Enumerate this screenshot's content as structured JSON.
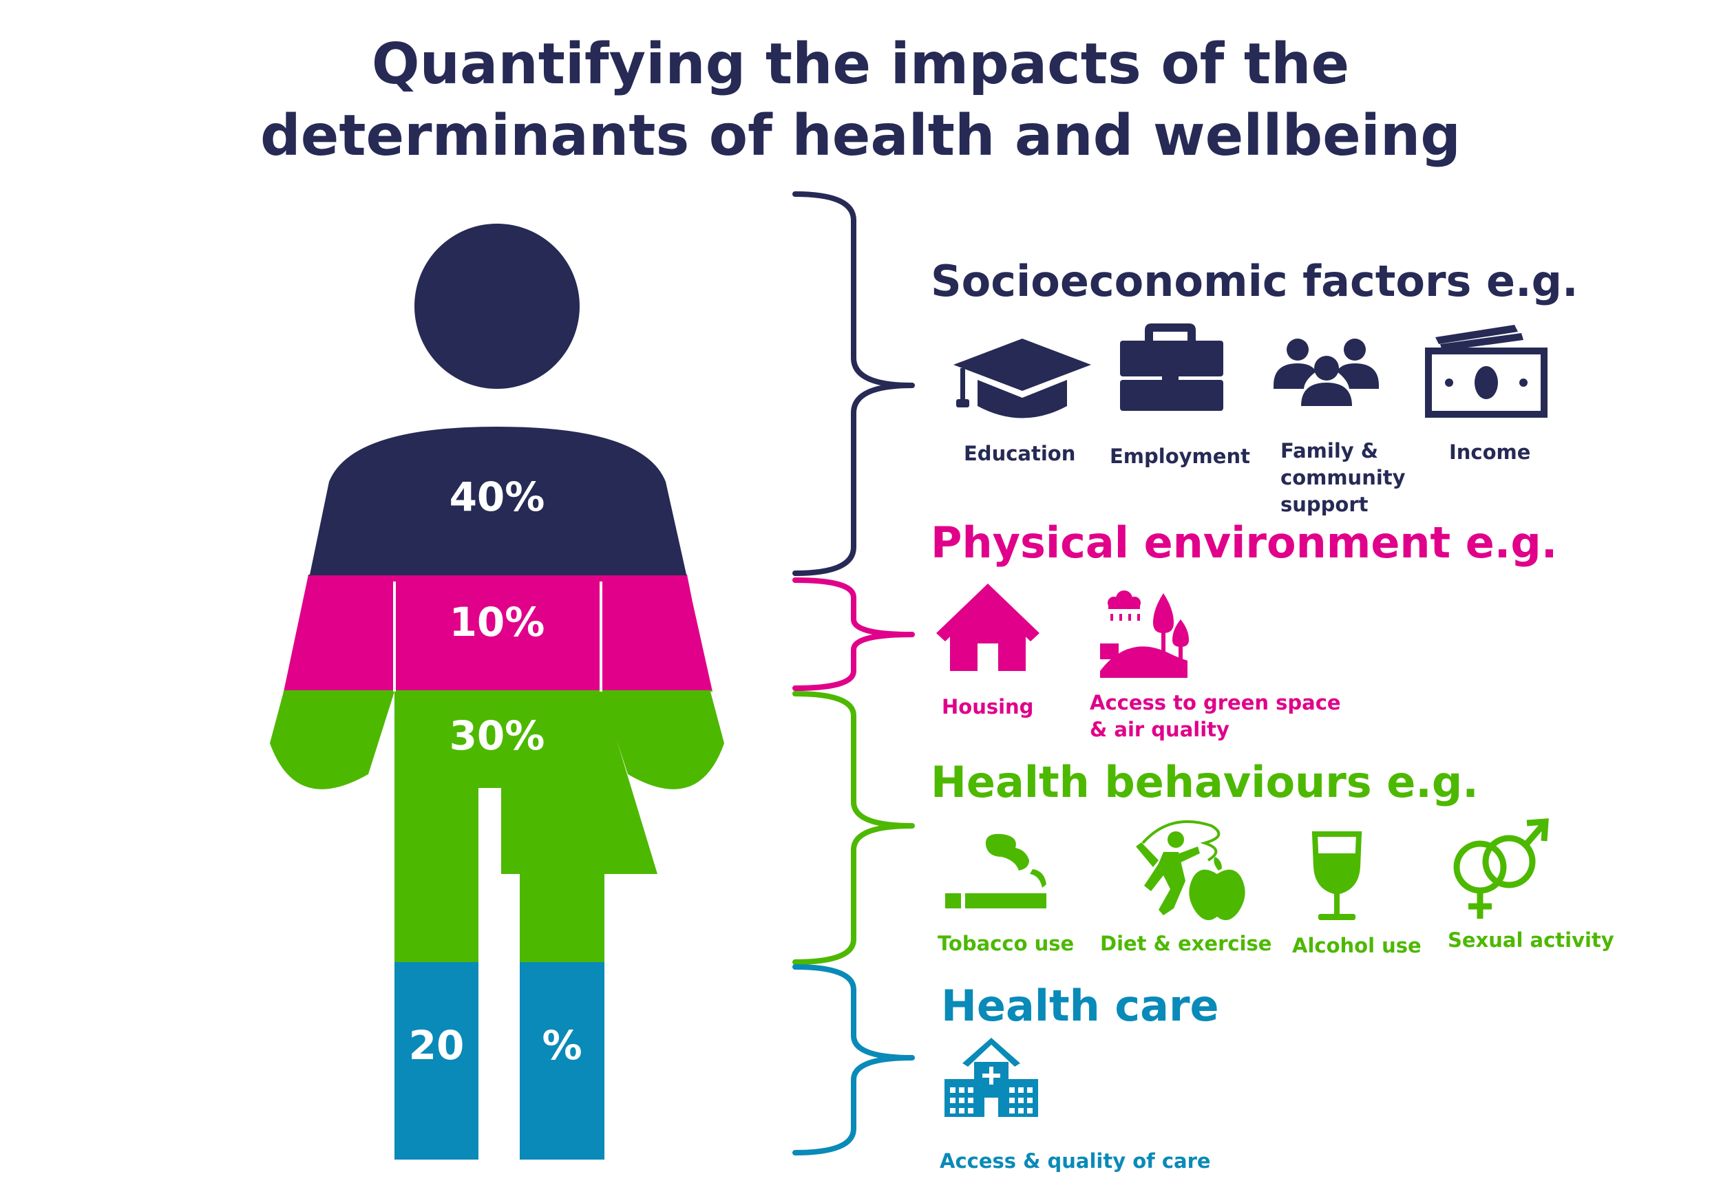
{
  "title": {
    "line1": "Quantifying the impacts of the",
    "line2": "determinants of health and wellbeing"
  },
  "colors": {
    "socioeconomic": "#262a55",
    "physical": "#e0008a",
    "behaviours": "#4db800",
    "healthcare": "#0a8ab8"
  },
  "figure": {
    "socioeconomic_pct": "40%",
    "physical_pct": "10%",
    "behaviours_pct": "30%",
    "healthcare_pct_left": "20",
    "healthcare_pct_right": "%"
  },
  "sections": {
    "socioeconomic": {
      "heading": "Socioeconomic factors e.g.",
      "items": [
        {
          "icon": "graduation-cap-icon",
          "label": "Education"
        },
        {
          "icon": "briefcase-icon",
          "label": "Employment"
        },
        {
          "icon": "people-group-icon",
          "label_lines": [
            "Family &",
            "community",
            "support"
          ]
        },
        {
          "icon": "banknote-icon",
          "label": "Income"
        }
      ]
    },
    "physical": {
      "heading": "Physical environment e.g.",
      "items": [
        {
          "icon": "house-icon",
          "label": "Housing"
        },
        {
          "icon": "landscape-icon",
          "label_lines": [
            "Access to green space",
            "& air quality"
          ]
        }
      ]
    },
    "behaviours": {
      "heading": "Health behaviours e.g.",
      "items": [
        {
          "icon": "cigarette-icon",
          "label": "Tobacco use"
        },
        {
          "icon": "exercise-apple-icon",
          "label": "Diet & exercise"
        },
        {
          "icon": "wine-glass-icon",
          "label": "Alcohol use"
        },
        {
          "icon": "gender-symbols-icon",
          "label": "Sexual activity"
        }
      ]
    },
    "healthcare": {
      "heading": "Health care",
      "items": [
        {
          "icon": "hospital-icon",
          "label": "Access & quality of care"
        }
      ]
    }
  }
}
